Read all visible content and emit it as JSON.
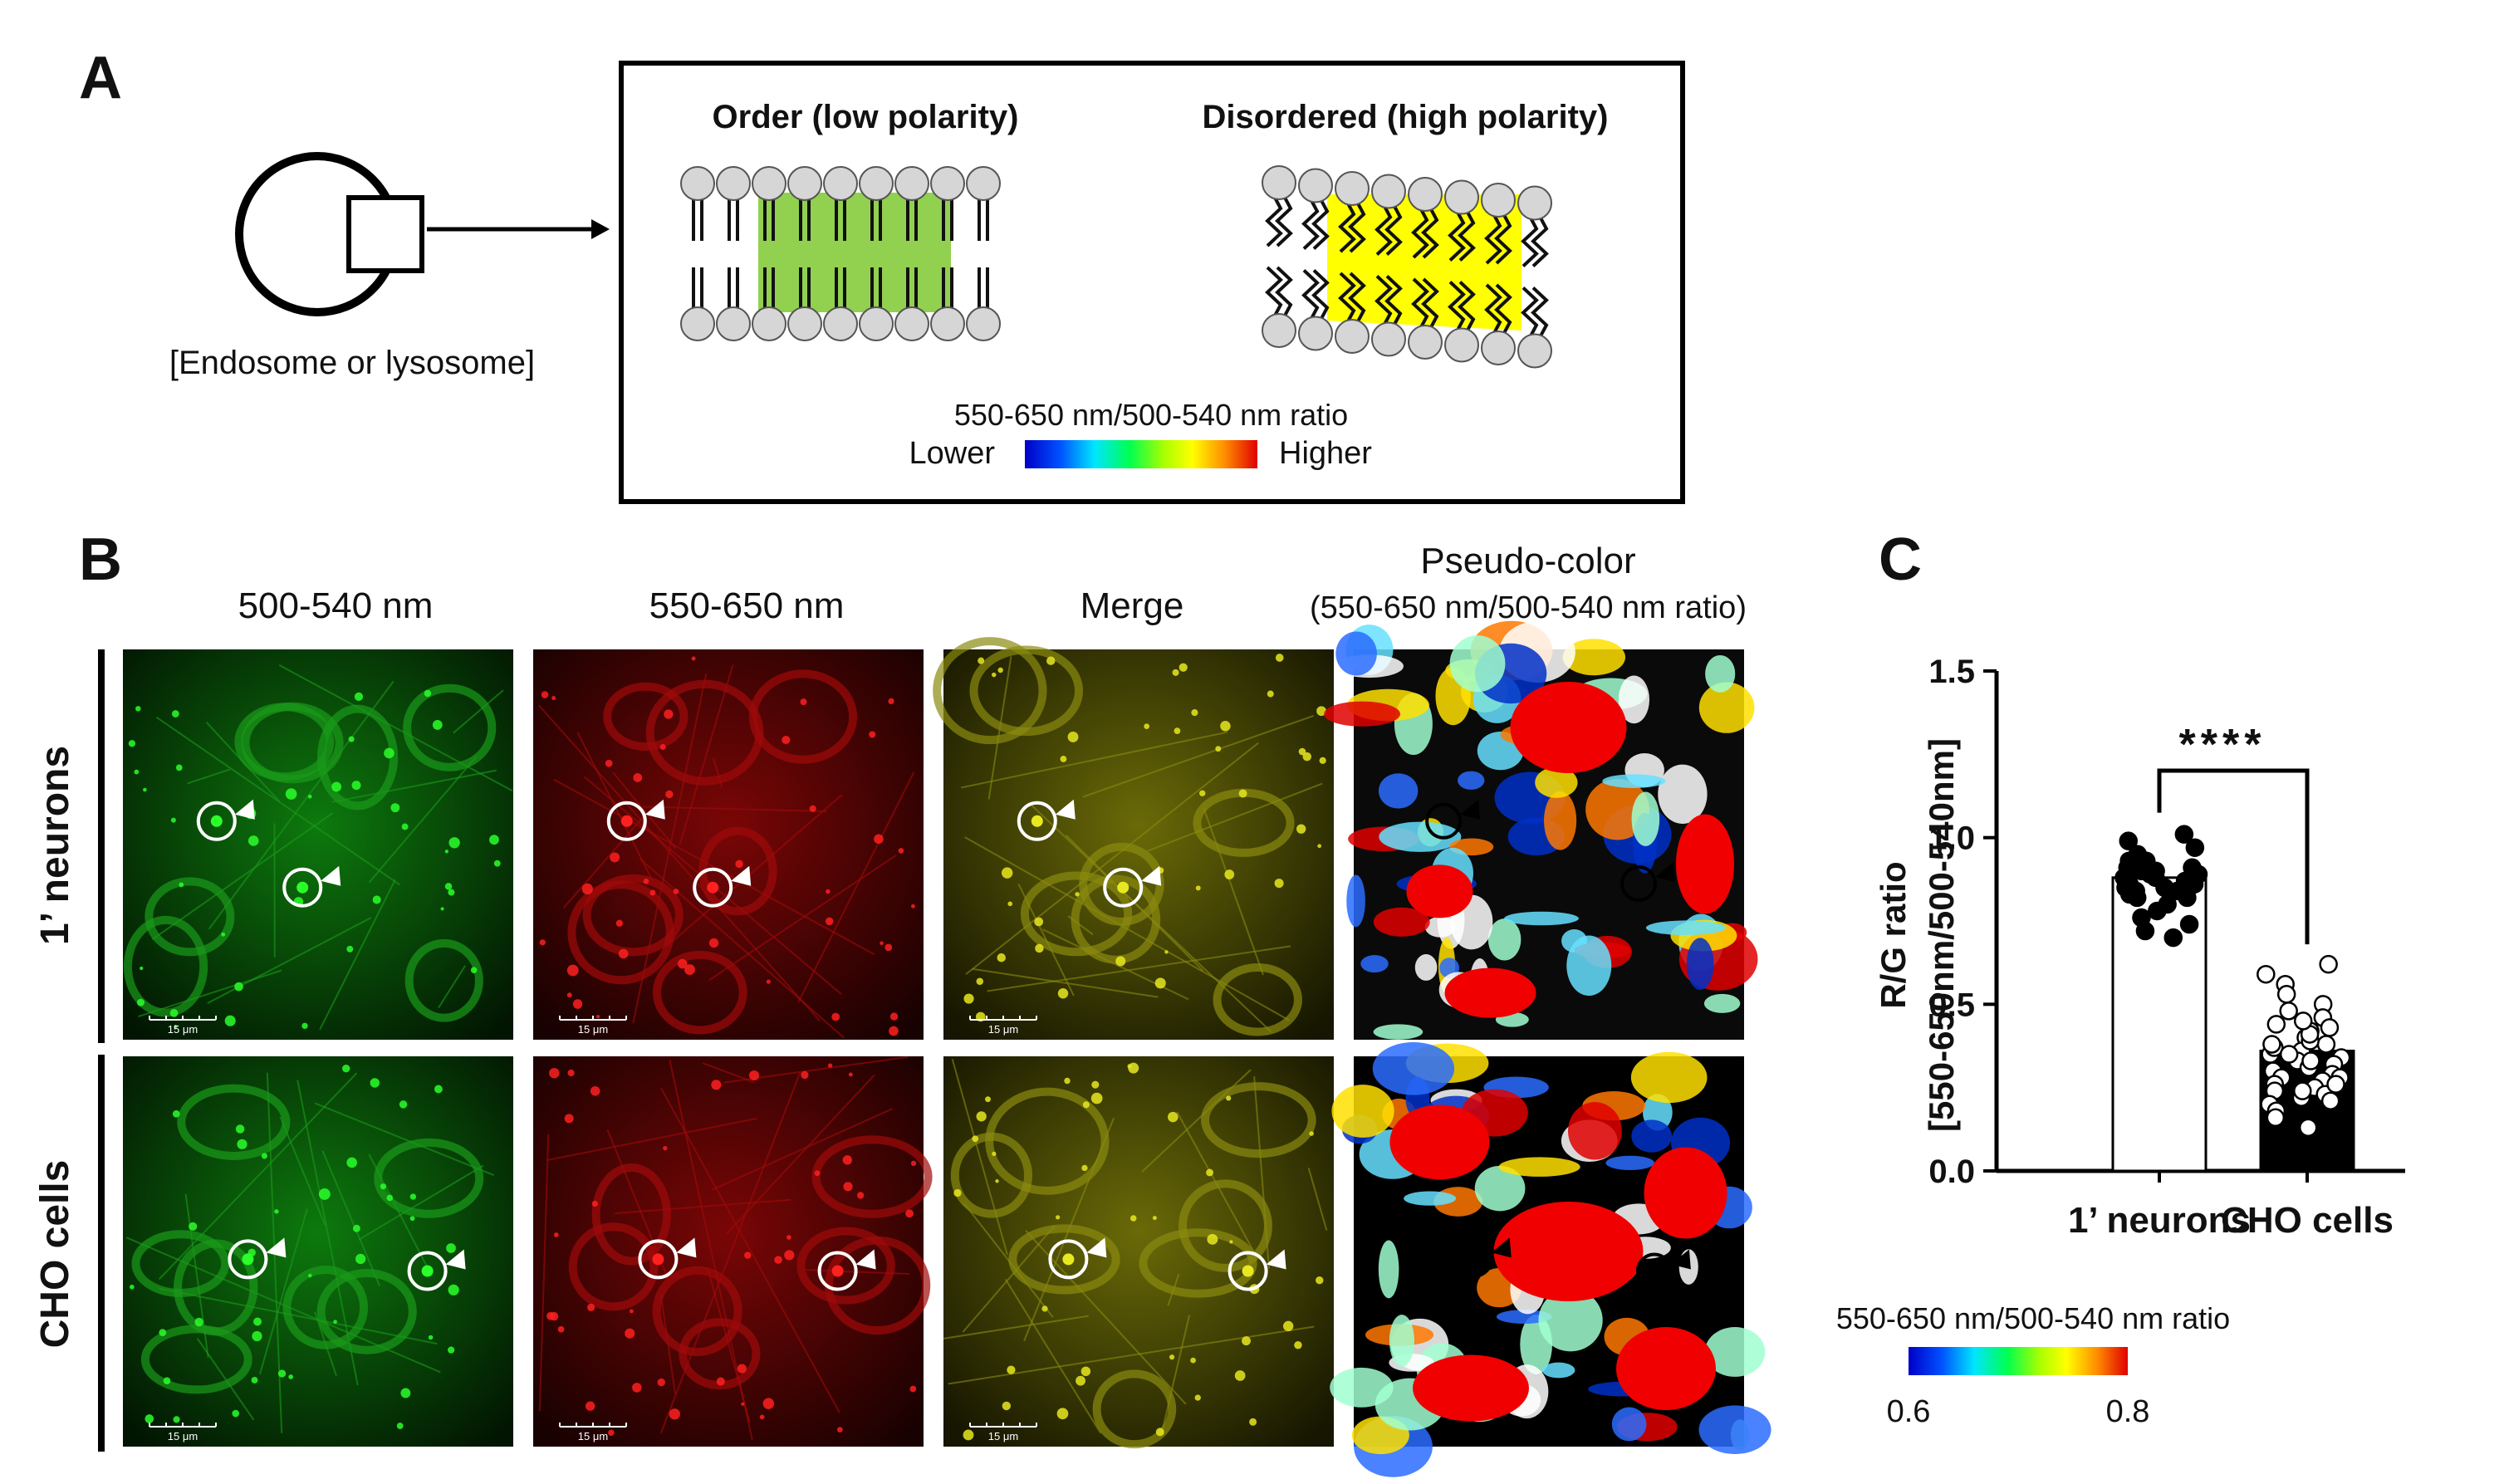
{
  "panel_a": {
    "letter": "A",
    "endosome_label": "[Endosome or lysosome]",
    "ordered_title": "Order (low polarity)",
    "disordered_title": "Disordered (high polarity)",
    "scale_title": "550-650 nm/500-540 nm ratio",
    "scale_low": "Lower",
    "scale_high": "Higher"
  },
  "panel_b": {
    "letter": "B",
    "columns": [
      {
        "label": "500-540 nm",
        "sublabel": ""
      },
      {
        "label": "550-650 nm",
        "sublabel": ""
      },
      {
        "label": "Merge",
        "sublabel": ""
      },
      {
        "label": "Pseudo-color",
        "sublabel": "(550-650 nm/500-540 nm ratio)"
      }
    ],
    "rows": [
      {
        "label": "1’ neurons"
      },
      {
        "label": "CHO cells"
      }
    ],
    "scale_bar": "15 μm",
    "colorbar": {
      "title": "550-650 nm/500-540 nm ratio",
      "min_label": "0.6",
      "max_label": "0.8"
    }
  },
  "panel_c": {
    "letter": "C",
    "significance": "****",
    "chart_data": {
      "type": "bar",
      "title": "",
      "xlabel": "",
      "ylabel": "R/G ratio",
      "ylabel2": "[550-650nm/500-540nm]",
      "categories": [
        "1’ neurons",
        "CHO cells"
      ],
      "values": [
        0.88,
        0.36
      ],
      "bar_fill": [
        "#ffffff",
        "#000000"
      ],
      "point_style": [
        "filled",
        "open"
      ],
      "ylim": [
        0,
        1.5
      ],
      "yticks": [
        "0.0",
        "0.5",
        "1.0",
        "1.5"
      ],
      "points": [
        [
          0.95,
          0.93,
          0.91,
          0.9,
          0.89,
          0.88,
          0.87,
          0.86,
          0.85,
          0.84,
          0.83,
          0.82,
          0.8,
          0.78,
          0.76,
          0.74,
          0.72,
          0.7,
          0.97,
          0.99,
          1.01,
          0.92,
          0.9,
          0.88,
          0.86,
          0.84,
          0.89,
          0.91,
          0.93,
          0.87,
          0.85,
          0.88,
          0.9,
          0.86,
          0.82
        ],
        [
          0.62,
          0.59,
          0.56,
          0.53,
          0.5,
          0.48,
          0.46,
          0.44,
          0.42,
          0.4,
          0.38,
          0.36,
          0.35,
          0.34,
          0.33,
          0.32,
          0.3,
          0.29,
          0.28,
          0.27,
          0.26,
          0.25,
          0.24,
          0.23,
          0.22,
          0.21,
          0.2,
          0.18,
          0.16,
          0.13,
          0.37,
          0.39,
          0.41,
          0.43,
          0.45,
          0.31,
          0.33,
          0.35,
          0.28,
          0.26,
          0.24,
          0.38
        ]
      ]
    }
  },
  "colors": {
    "membrane_head": "#d6d6d6",
    "ordered_fill": "#92d050",
    "disordered_fill": "#ffff00",
    "green_channel": "#00c800",
    "red_channel": "#d80000",
    "merge_channel": "#c8c800"
  }
}
